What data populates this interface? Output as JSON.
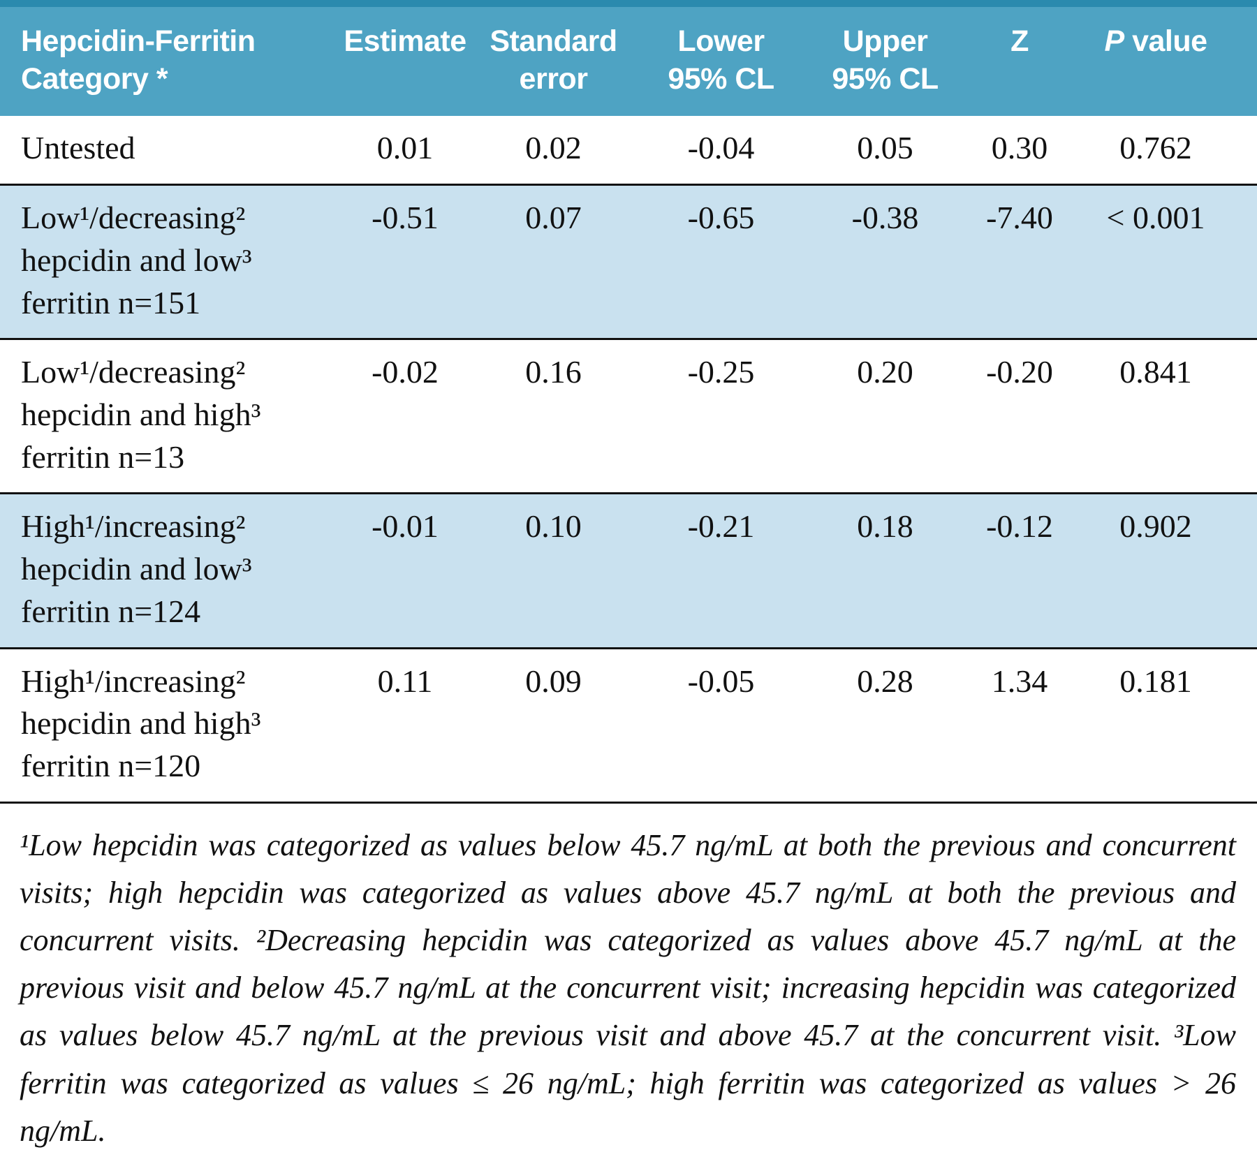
{
  "colors": {
    "header_bg": "#4EA3C3",
    "top_strip": "#2A8AAE",
    "shaded_row_bg": "#C9E1EF",
    "row_divider": "#111111",
    "header_text": "#FFFFFF",
    "body_text": "#111111"
  },
  "table": {
    "header": {
      "category": [
        "Hepcidin-Ferritin",
        "Category *"
      ],
      "estimate": "Estimate",
      "standard_error": [
        "Standard",
        "error"
      ],
      "lower": [
        "Lower",
        "95% CL"
      ],
      "upper": [
        "Upper",
        "95% CL"
      ],
      "z": "Z",
      "p_italic": "P",
      "p_rest": "value"
    },
    "rows": [
      {
        "category_lines": [
          "Untested"
        ],
        "estimate": "0.01",
        "standard_error": "0.02",
        "lower": "-0.04",
        "upper": "0.05",
        "z": "0.30",
        "p": "0.762",
        "shaded": false
      },
      {
        "category_lines": [
          "Low¹/decreasing²",
          "hepcidin and low³",
          "ferritin n=151"
        ],
        "estimate": "-0.51",
        "standard_error": "0.07",
        "lower": "-0.65",
        "upper": "-0.38",
        "z": "-7.40",
        "p": "< 0.001",
        "shaded": true
      },
      {
        "category_lines": [
          "Low¹/decreasing²",
          "hepcidin and high³",
          "ferritin n=13"
        ],
        "estimate": "-0.02",
        "standard_error": "0.16",
        "lower": "-0.25",
        "upper": "0.20",
        "z": "-0.20",
        "p": "0.841",
        "shaded": false
      },
      {
        "category_lines": [
          "High¹/increasing²",
          "hepcidin and low³",
          "ferritin n=124"
        ],
        "estimate": "-0.01",
        "standard_error": "0.10",
        "lower": "-0.21",
        "upper": "0.18",
        "z": "-0.12",
        "p": "0.902",
        "shaded": true
      },
      {
        "category_lines": [
          "High¹/increasing²",
          "hepcidin and high³",
          "ferritin n=120"
        ],
        "estimate": "0.11",
        "standard_error": "0.09",
        "lower": "-0.05",
        "upper": "0.28",
        "z": "1.34",
        "p": "0.181",
        "shaded": false
      }
    ]
  },
  "footnote": "¹Low hepcidin was categorized as values below 45.7 ng/mL at both the previous and concurrent visits; high hepcidin was categorized as values above 45.7 ng/mL at both the previous and concurrent visits. ²Decreasing hepcidin was categorized as values above 45.7 ng/mL at the previous visit and below 45.7 ng/mL at the concurrent visit; increasing hepcidin was categorized as values below 45.7 ng/mL at the previous visit and above 45.7 at the concurrent visit. ³Low ferritin was categorized as values ≤ 26 ng/mL; high ferritin was categorized as values > 26 ng/mL."
}
